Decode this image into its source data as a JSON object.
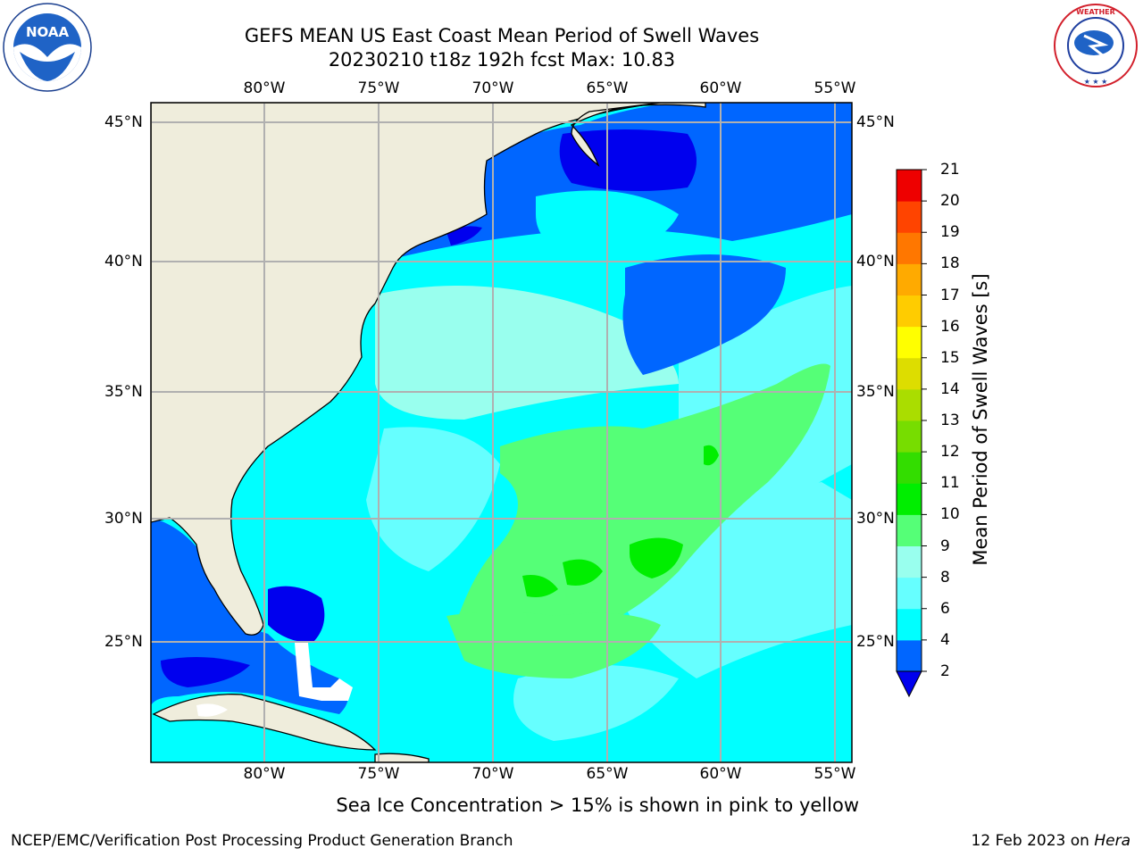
{
  "header": {
    "title_line1": "GEFS MEAN US East Coast Mean Period of Swell Waves",
    "title_line2": "20230210 t18z 192h fcst   Max: 10.83"
  },
  "logos": {
    "left": {
      "icon": "noaa-logo",
      "text": "NOAA"
    },
    "right": {
      "icon": "nws-logo",
      "text": "NATIONAL WEATHER SERVICE"
    }
  },
  "map": {
    "lon_ticks": [
      "80°W",
      "75°W",
      "70°W",
      "65°W",
      "60°W",
      "55°W"
    ],
    "lat_ticks": [
      "45°N",
      "40°N",
      "35°N",
      "30°N",
      "25°N"
    ],
    "extent": {
      "lon_min": -85,
      "lon_max": -54.5,
      "lat_min": 20,
      "lat_max": 46
    },
    "land_color": "#efeddc"
  },
  "colorbar": {
    "title": "Mean Period of Swell Waves [s]",
    "labels": [
      "2",
      "4",
      "6",
      "8",
      "9",
      "10",
      "11",
      "12",
      "13",
      "14",
      "15",
      "16",
      "17",
      "18",
      "19",
      "20",
      "21"
    ],
    "colors": [
      "#0000ee",
      "#0066ff",
      "#00ffff",
      "#66ffff",
      "#99ffee",
      "#55ff77",
      "#00ee00",
      "#33dd00",
      "#77dd00",
      "#aadd00",
      "#dddd00",
      "#ffff00",
      "#ffcc00",
      "#ffaa00",
      "#ff7700",
      "#ff4400",
      "#ee0000",
      "#ff0000"
    ]
  },
  "footer": {
    "note": "Sea Ice Concentration > 15% is shown in pink to yellow",
    "credit": "NCEP/EMC/Verification Post Processing Product Generation Branch",
    "date": "12 Feb 2023 on",
    "system": "Hera"
  }
}
